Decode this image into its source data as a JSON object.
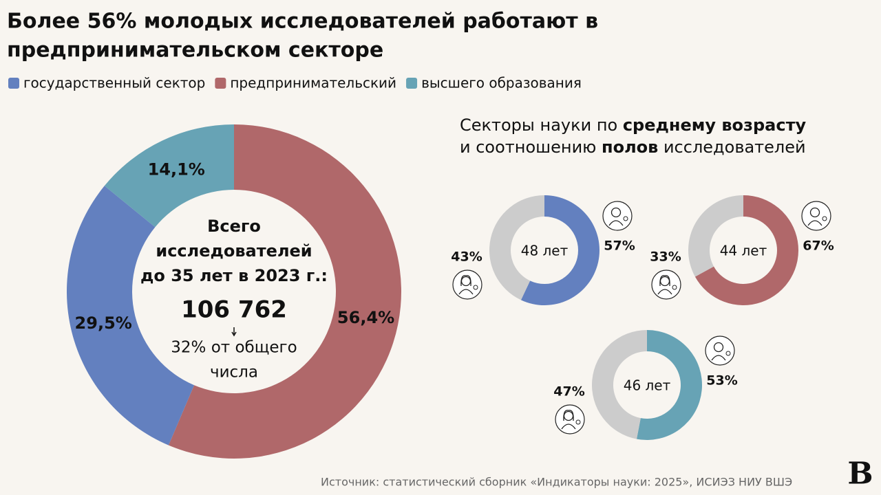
{
  "header": {
    "title_lines": [
      "Более 56% молодых исследователей работают в",
      "предпринимательском секторе"
    ]
  },
  "chart_data": [
    {
      "type": "pie",
      "donut": true,
      "categories": [
        "государственный сектор",
        "предпринимательский",
        "высшего образования"
      ],
      "colors": [
        "#6380bf",
        "#b0686a",
        "#67a3b5"
      ],
      "values": [
        29.5,
        56.4,
        14.1
      ],
      "value_labels": [
        "29,5%",
        "56,4%",
        "14,1%"
      ],
      "center_label_lines": [
        "Всего",
        "исследователей",
        "до 35 лет в 2023 г.:"
      ],
      "center_value": "106 762",
      "center_note_lines": [
        "32% от общего",
        "числа"
      ]
    },
    {
      "type": "pie",
      "donut": true,
      "values": [
        57,
        43
      ],
      "value_labels": [
        "57%",
        "43%"
      ],
      "colors": [
        "#6380bf",
        "#cccccc"
      ],
      "center_label": "48 лет"
    },
    {
      "type": "pie",
      "donut": true,
      "values": [
        67,
        33
      ],
      "value_labels": [
        "67%",
        "33%"
      ],
      "colors": [
        "#b0686a",
        "#cccccc"
      ],
      "center_label": "44 лет"
    },
    {
      "type": "pie",
      "donut": true,
      "values": [
        53,
        47
      ],
      "value_labels": [
        "53%",
        "47%"
      ],
      "colors": [
        "#67a3b5",
        "#cccccc"
      ],
      "center_label": "46 лет"
    }
  ],
  "section": {
    "title_lines": [
      [
        {
          "text": "Секторы науки по ",
          "bold": false
        },
        {
          "text": "среднему возрасту",
          "bold": true
        }
      ],
      [
        {
          "text": "и соотношению ",
          "bold": false
        },
        {
          "text": "полов",
          "bold": true
        },
        {
          "text": " исследователей",
          "bold": false
        }
      ]
    ]
  },
  "footer": {
    "source": "Источник: статистический сборник «Индикаторы науки: 2025», ИСИЭЗ НИУ ВШЭ",
    "logo": "В"
  }
}
